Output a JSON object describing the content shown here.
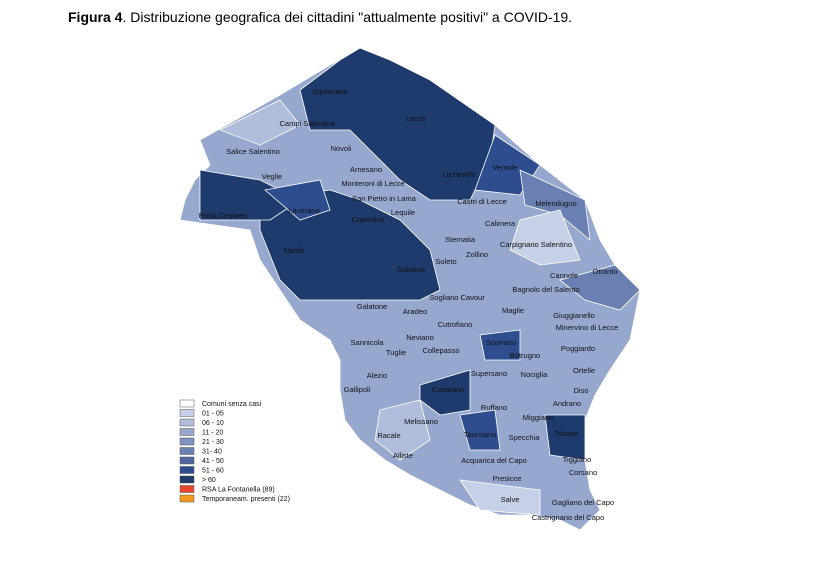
{
  "title": {
    "label": "Figura 4",
    "text": ". Distribuzione  geografica dei cittadini \"attualmente positivi\" a COVID-19."
  },
  "towns": [
    "Squinzano",
    "Lecce",
    "Campi Salentina",
    "Novoli",
    "Salice Salentino",
    "Arnesano",
    "Vernole",
    "Veglie",
    "Monteroni di Lecce",
    "Lizzanello",
    "San Pietro in Lama",
    "Castri di Lecce",
    "Melendugno",
    "Laverano",
    "Porto Cesareo",
    "Lequile",
    "Copertino",
    "Calimera",
    "Sternatia",
    "Carpignano Salentino",
    "Nardò",
    "Zollino",
    "Soleto",
    "Galatina",
    "Cannole",
    "Otranto",
    "Bagnolo del Salento",
    "Sogliano Cavour",
    "Galatone",
    "Aradeo",
    "Maglie",
    "Giuggianello",
    "Cutrofiano",
    "Minervino di Lecce",
    "Neviano",
    "Sannicola",
    "Scorrano",
    "Poggiardo",
    "Collepasso",
    "Tuglie",
    "Botrugno",
    "Supersano",
    "Nociglia",
    "Ortelle",
    "Alezio",
    "Gallipoli",
    "Casarano",
    "Diso",
    "Ruffano",
    "Andrano",
    "Miggiano",
    "Melissano",
    "Taurisano",
    "Specchia",
    "Tricase",
    "Racale",
    "Alliste",
    "Acquarica del Capo",
    "Tiggiano",
    "Corsano",
    "Presicce",
    "Salve",
    "Gagliano del Capo",
    "Castrignano del Capo"
  ],
  "legend": [
    {
      "label": "Comuni senza casi",
      "color": "#ffffff"
    },
    {
      "label": "01 - 05",
      "color": "#c6d0e6"
    },
    {
      "label": "06 - 10",
      "color": "#b0bedc"
    },
    {
      "label": "11 - 20",
      "color": "#97a8cf"
    },
    {
      "label": "21 - 30",
      "color": "#7f92c0"
    },
    {
      "label": "31- 40",
      "color": "#6a7fb2"
    },
    {
      "label": "41 - 50",
      "color": "#4f66a0"
    },
    {
      "label": "51 - 60",
      "color": "#2e4d8e"
    },
    {
      "label": "> 60",
      "color": "#1f3a6d"
    },
    {
      "label": "RSA La Fontanella (89)",
      "color": "#e8472b"
    },
    {
      "label": "Temporaneam. presenti (22)",
      "color": "#f39a1e"
    }
  ]
}
